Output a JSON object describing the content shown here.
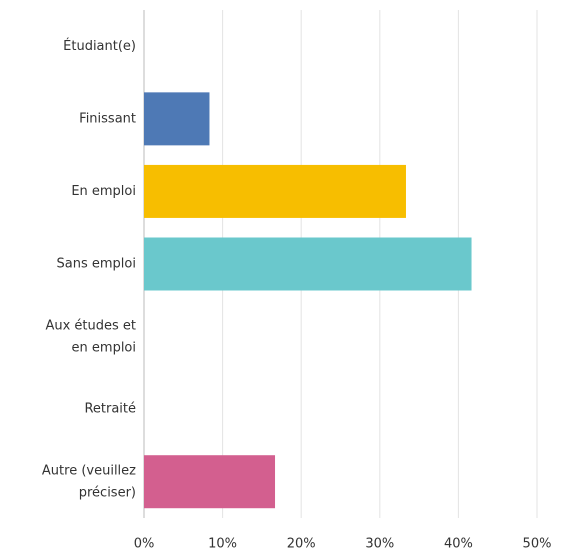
{
  "chart_data": {
    "type": "hbar",
    "categories": [
      "Étudiant(e)",
      "Finissant",
      "En emploi",
      "Sans emploi",
      "Aux études et en emploi",
      "Retraité",
      "Autre (veuillez préciser)"
    ],
    "values": [
      0,
      8.33,
      33.33,
      41.67,
      0,
      0,
      16.67
    ],
    "colors": [
      "#4e79b5",
      "#4e79b5",
      "#f7be00",
      "#6ac8cc",
      "#4e79b5",
      "#4e79b5",
      "#d35f8f"
    ],
    "xlim": [
      0,
      50
    ],
    "xticks": [
      {
        "value": 0,
        "label": "0%"
      },
      {
        "value": 10,
        "label": "10%"
      },
      {
        "value": 20,
        "label": "20%"
      },
      {
        "value": 30,
        "label": "30%"
      },
      {
        "value": 40,
        "label": "40%"
      },
      {
        "value": 50,
        "label": "50%"
      }
    ],
    "grid": true
  }
}
